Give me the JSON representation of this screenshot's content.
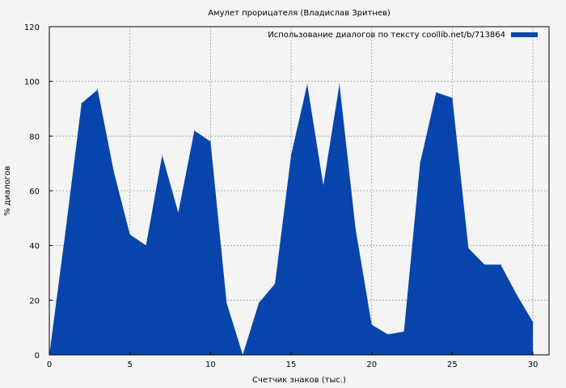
{
  "chart_data": {
    "type": "area",
    "title": "Амулет прорицателя (Владислав Зритнев)",
    "xlabel": "Счетчик знаков (тыс.)",
    "ylabel": "% диалогов",
    "xlim": [
      0,
      31
    ],
    "ylim": [
      0,
      120
    ],
    "xticks": [
      0,
      5,
      10,
      15,
      20,
      25,
      30
    ],
    "yticks": [
      0,
      20,
      40,
      60,
      80,
      100,
      120
    ],
    "grid": true,
    "legend_position": "top-right",
    "series": [
      {
        "name": "Использование диалогов по тексту coollib.net/b/713864",
        "color": "#0745ad",
        "x": [
          0,
          1,
          2,
          3,
          4,
          5,
          6,
          7,
          8,
          9,
          10,
          11,
          12,
          13,
          14,
          15,
          16,
          17,
          18,
          19,
          20,
          21,
          22,
          23,
          24,
          25,
          26,
          27,
          28,
          29,
          30
        ],
        "values": [
          0,
          45,
          92,
          97,
          67,
          44,
          40,
          73,
          52,
          82,
          78,
          19,
          0,
          19,
          26,
          73,
          99,
          62,
          99,
          46,
          11,
          7.5,
          8.5,
          70,
          96,
          94,
          39,
          33,
          33,
          22,
          12
        ]
      }
    ]
  }
}
